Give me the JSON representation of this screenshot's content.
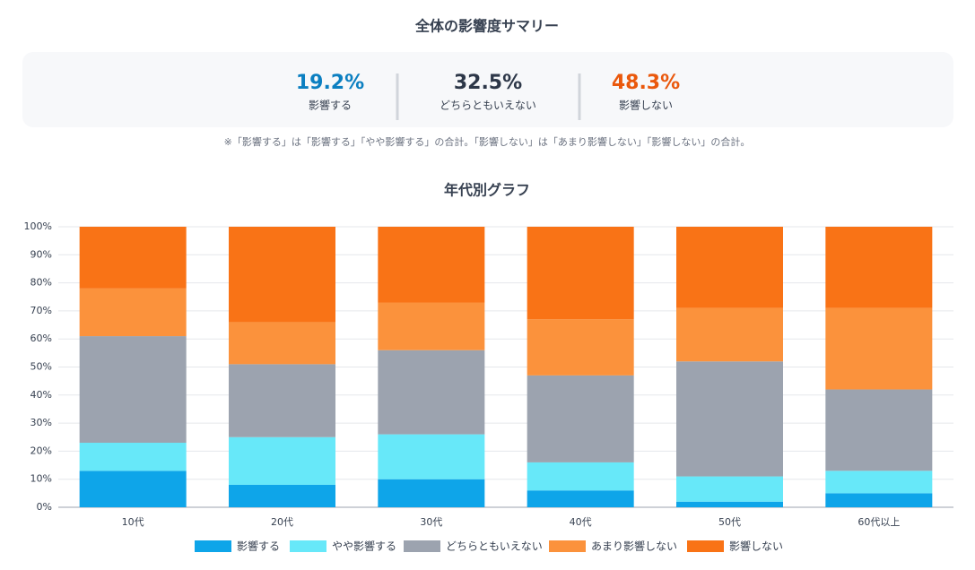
{
  "summary": {
    "title": "全体の影響度サマリー",
    "items": [
      {
        "value": "19.2%",
        "label": "影響する",
        "color": "#0b7fc1"
      },
      {
        "value": "32.5%",
        "label": "どちらともいえない",
        "color": "#2d3748"
      },
      {
        "value": "48.3%",
        "label": "影響しない",
        "color": "#ea580c"
      }
    ],
    "note": "※「影響する」は「影響する」「やや影響する」の合計。「影響しない」は「あまり影響しない」「影響しない」の合計。"
  },
  "chart_data": {
    "type": "stacked_bar",
    "title": "年代別グラフ",
    "categories": [
      "10代",
      "20代",
      "30代",
      "40代",
      "50代",
      "60代以上"
    ],
    "series": [
      {
        "name": "影響する",
        "color": "#0ea5e9",
        "values": [
          13,
          8,
          10,
          6,
          2,
          5
        ]
      },
      {
        "name": "やや影響する",
        "color": "#67e8f9",
        "values": [
          10,
          17,
          16,
          10,
          9,
          8
        ]
      },
      {
        "name": "どちらともいえない",
        "color": "#9ca3af",
        "values": [
          38,
          26,
          30,
          31,
          41,
          29
        ]
      },
      {
        "name": "あまり影響しない",
        "color": "#fb923c",
        "values": [
          17,
          15,
          17,
          20,
          19,
          29
        ]
      },
      {
        "name": "影響しない",
        "color": "#f97316",
        "values": [
          22,
          34,
          27,
          33,
          29,
          29
        ]
      }
    ],
    "ylim": [
      0,
      100
    ],
    "yticks": [
      {
        "value": 0,
        "label": "0%"
      },
      {
        "value": 10,
        "label": "10%"
      },
      {
        "value": 20,
        "label": "20%"
      },
      {
        "value": 30,
        "label": "30%"
      },
      {
        "value": 40,
        "label": "40%"
      },
      {
        "value": 50,
        "label": "50%"
      },
      {
        "value": 60,
        "label": "60%"
      },
      {
        "value": 70,
        "label": "70%"
      },
      {
        "value": 80,
        "label": "80%"
      },
      {
        "value": 90,
        "label": "90%"
      },
      {
        "value": 100,
        "label": "100%"
      }
    ],
    "grid": true,
    "legend": "bottom"
  }
}
